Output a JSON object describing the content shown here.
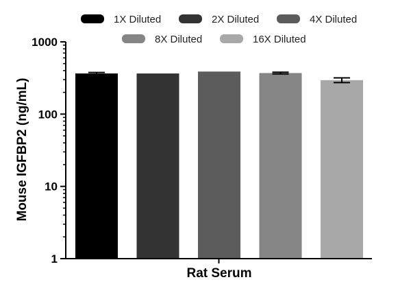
{
  "chart_data": {
    "type": "bar",
    "categories": [
      "Rat Serum"
    ],
    "series": [
      {
        "name": "1X Diluted",
        "values": [
          365
        ],
        "error": [
          12
        ],
        "color": "#000000"
      },
      {
        "name": "2X Diluted",
        "values": [
          365
        ],
        "error": [
          0
        ],
        "color": "#333333"
      },
      {
        "name": "4X Diluted",
        "values": [
          388
        ],
        "error": [
          0
        ],
        "color": "#5c5c5c"
      },
      {
        "name": "8X Diluted",
        "values": [
          370
        ],
        "error": [
          10
        ],
        "color": "#858585"
      },
      {
        "name": "16X Diluted",
        "values": [
          295
        ],
        "error": [
          22
        ],
        "color": "#a8a8a8"
      }
    ],
    "xlabel": "Rat Serum",
    "ylabel": "Mouse IGFBP2 (ng/mL)",
    "yscale": "log",
    "ylim": [
      1,
      1000
    ],
    "yticks": [
      1,
      10,
      100,
      1000
    ],
    "ytick_labels": [
      "1",
      "10",
      "100",
      "1000"
    ],
    "grid": false,
    "legend_position": "top"
  }
}
